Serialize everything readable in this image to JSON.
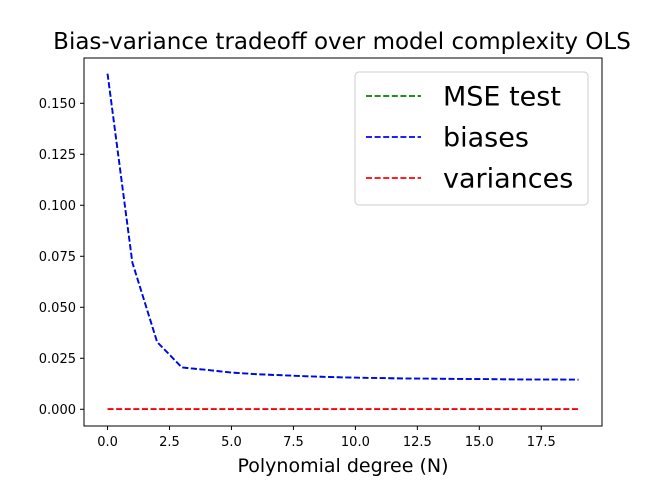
{
  "chart_data": {
    "type": "line",
    "title": "Bias-variance tradeoff over model complexity OLS",
    "xlabel": "Polynomial degree (N)",
    "ylabel": "",
    "xlim": [
      -0.95,
      19.95
    ],
    "ylim": [
      -0.0082,
      0.1722
    ],
    "x_ticks": [
      0.0,
      2.5,
      5.0,
      7.5,
      10.0,
      12.5,
      15.0,
      17.5
    ],
    "x_tick_labels": [
      "0.0",
      "2.5",
      "5.0",
      "7.5",
      "10.0",
      "12.5",
      "15.0",
      "17.5"
    ],
    "y_ticks": [
      0.0,
      0.025,
      0.05,
      0.075,
      0.1,
      0.125,
      0.15
    ],
    "y_tick_labels": [
      "0.000",
      "0.025",
      "0.050",
      "0.075",
      "0.100",
      "0.125",
      "0.150"
    ],
    "grid": false,
    "legend_position": "top-right",
    "x": [
      0,
      1,
      2,
      3,
      4,
      5,
      6,
      7,
      8,
      9,
      10,
      11,
      12,
      13,
      14,
      15,
      16,
      17,
      18,
      19
    ],
    "series": [
      {
        "name": "MSE test",
        "color": "#008000",
        "style": "dashed",
        "values": [
          0.1645,
          0.072,
          0.033,
          0.0205,
          0.0193,
          0.018,
          0.0172,
          0.0167,
          0.0162,
          0.0158,
          0.0155,
          0.0153,
          0.0151,
          0.015,
          0.0149,
          0.0148,
          0.0147,
          0.0146,
          0.0146,
          0.0145
        ]
      },
      {
        "name": "biases",
        "color": "#0000ff",
        "style": "dashed",
        "values": [
          0.1645,
          0.072,
          0.033,
          0.0205,
          0.0193,
          0.018,
          0.0172,
          0.0167,
          0.0162,
          0.0158,
          0.0155,
          0.0153,
          0.0151,
          0.015,
          0.0149,
          0.0148,
          0.0147,
          0.0146,
          0.0146,
          0.0145
        ]
      },
      {
        "name": "variances",
        "color": "#ff0000",
        "style": "dashed",
        "values": [
          0.0001,
          0.0001,
          0.0001,
          0.0001,
          0.0001,
          0.0001,
          0.0001,
          0.0001,
          0.0001,
          0.0001,
          0.0001,
          0.0001,
          0.0001,
          0.0001,
          0.0001,
          0.0001,
          0.0001,
          0.0001,
          0.0001,
          0.0001
        ]
      }
    ]
  }
}
